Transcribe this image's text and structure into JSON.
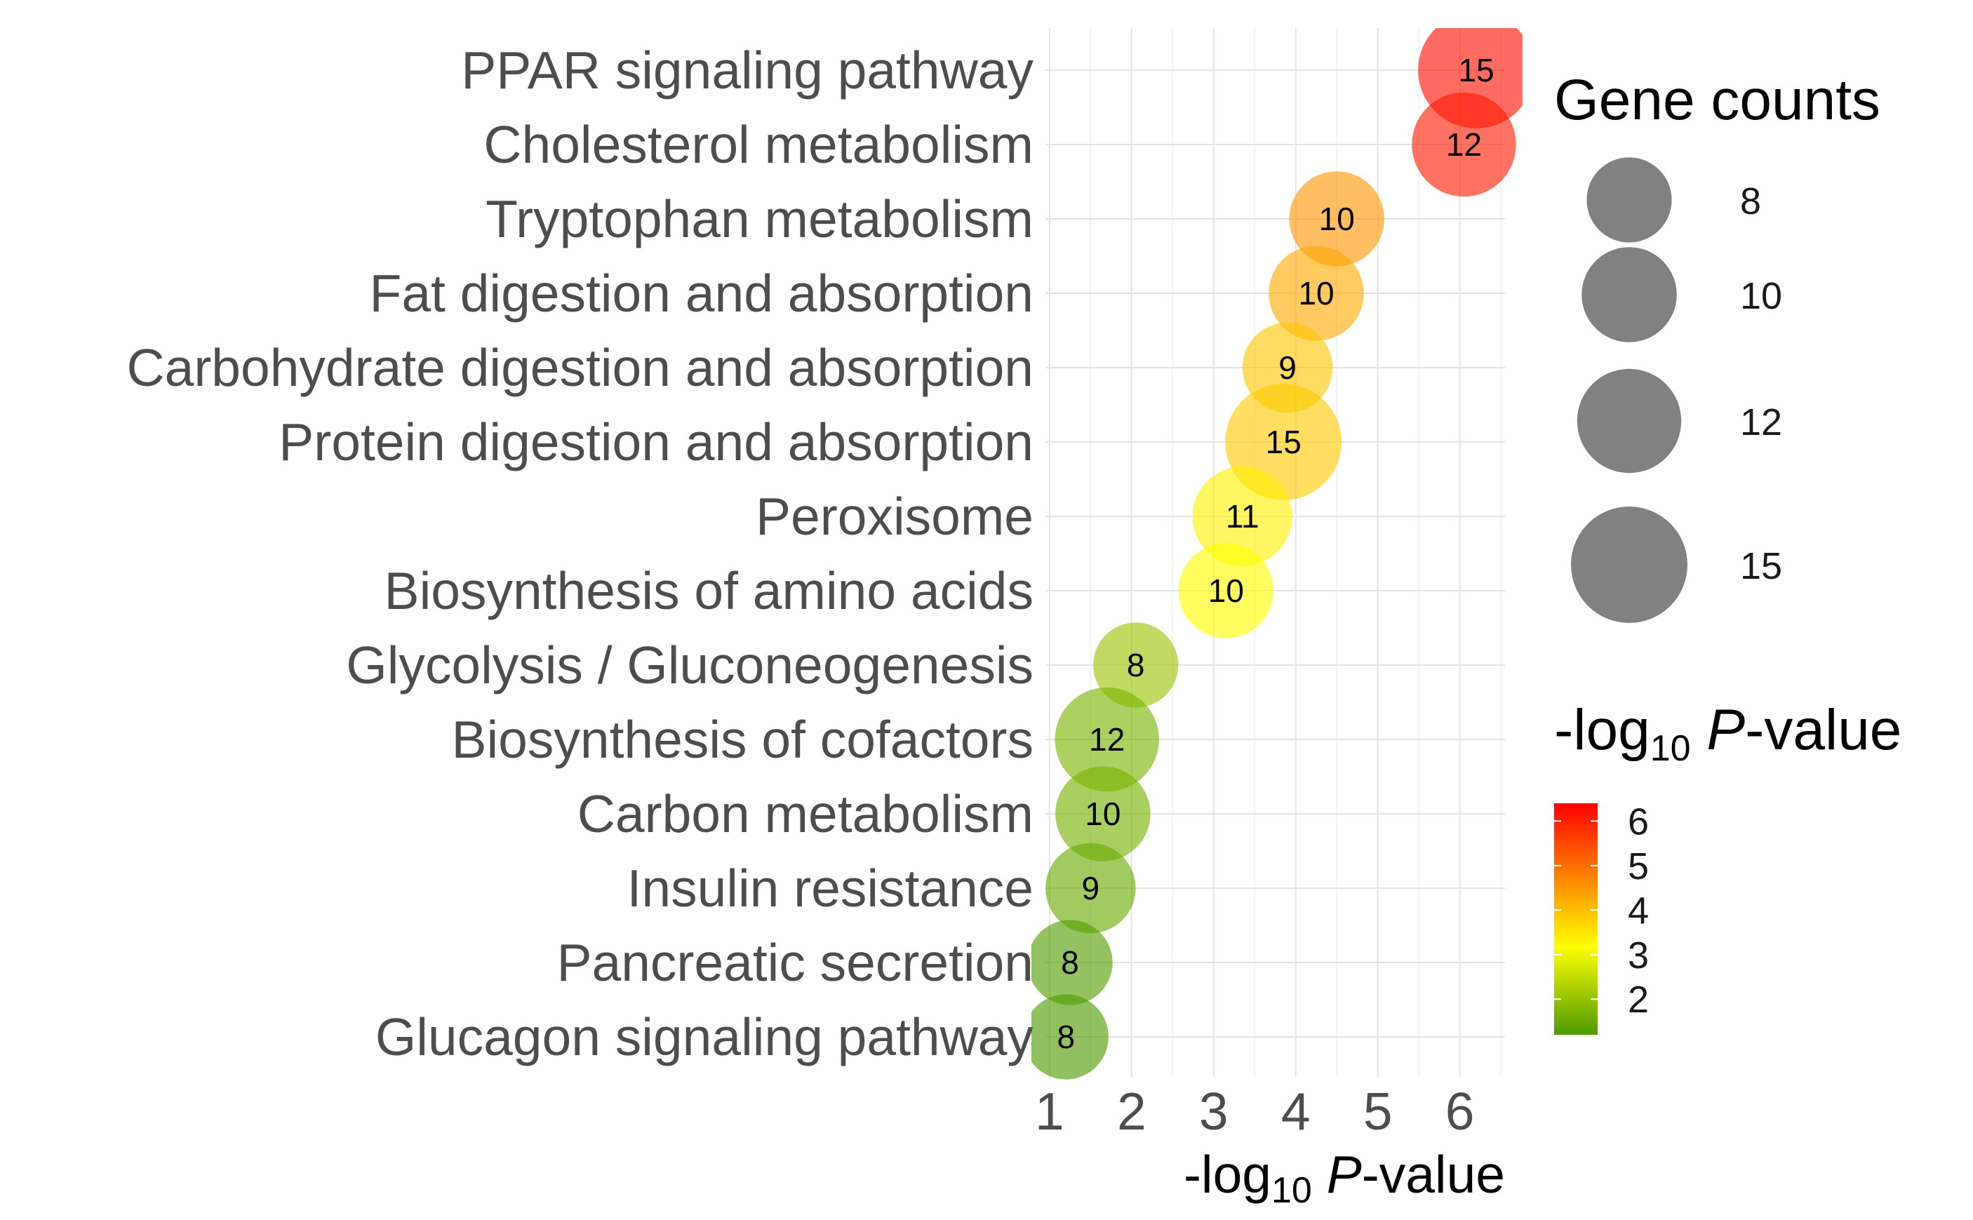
{
  "chart_data": {
    "type": "scatter",
    "subtype": "bubble",
    "categories": [
      "PPAR signaling pathway",
      "Cholesterol metabolism",
      "Tryptophan metabolism",
      "Fat digestion and absorption",
      "Carbohydrate digestion and absorption",
      "Protein digestion and absorption",
      "Peroxisome",
      "Biosynthesis of amino acids",
      "Glycolysis / Gluconeogenesis",
      "Biosynthesis of cofactors",
      "Carbon metabolism",
      "Insulin resistance",
      "Pancreatic secretion",
      "Glucagon signaling pathway"
    ],
    "x": [
      6.2,
      6.05,
      4.5,
      4.25,
      3.9,
      3.85,
      3.35,
      3.15,
      2.05,
      1.7,
      1.65,
      1.5,
      1.25,
      1.2
    ],
    "gene_counts": [
      15,
      12,
      10,
      10,
      9,
      15,
      11,
      10,
      8,
      12,
      10,
      9,
      8,
      8
    ],
    "point_labels": [
      "15",
      "12",
      "10",
      "10",
      "9",
      "15",
      "11",
      "10",
      "8",
      "12",
      "10",
      "9",
      "8",
      "8"
    ],
    "xlim": [
      0.95,
      6.55
    ],
    "xticks": [
      1,
      2,
      3,
      4,
      5,
      6
    ],
    "xtick_labels": [
      "1",
      "2",
      "3",
      "4",
      "5",
      "6"
    ],
    "xlabel": {
      "pre": "-log",
      "sub": "10",
      "italic": "P",
      "post": "-value"
    },
    "ylabel": "",
    "grid": true,
    "size_legend": {
      "title": "Gene counts",
      "values": [
        8,
        10,
        12,
        15
      ],
      "labels": [
        "8",
        "10",
        "12",
        "15"
      ],
      "color": "#7a7a7a"
    },
    "color_legend": {
      "title": {
        "pre": "-log",
        "sub": "10",
        "italic": "P",
        "post": "-value"
      },
      "range": [
        1.2,
        6.4
      ],
      "ticks": [
        6,
        5,
        4,
        3,
        2
      ],
      "tick_labels": [
        "6",
        "5",
        "4",
        "3",
        "2"
      ],
      "colors": [
        "#4d9a00",
        "#ffff00",
        "#ff0000"
      ]
    },
    "legend_position": "right"
  }
}
